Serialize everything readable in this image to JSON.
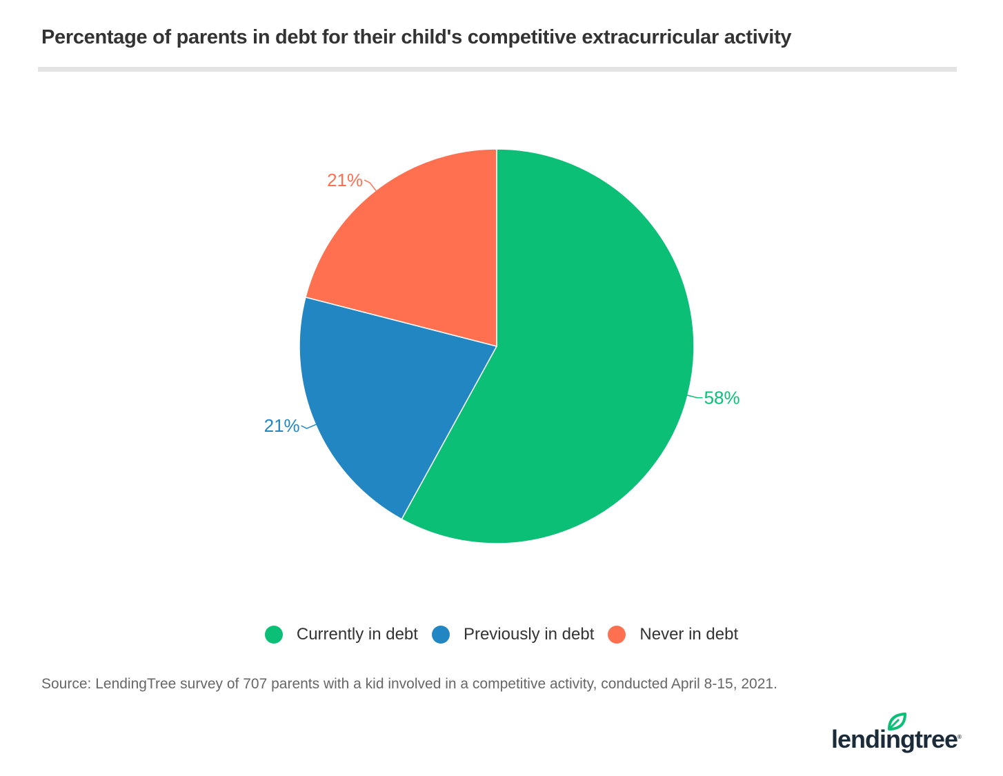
{
  "header": {
    "title": "Percentage of parents in debt for their child's competitive extracurricular activity"
  },
  "chart_data": {
    "type": "pie",
    "title": "Percentage of parents in debt for their child's competitive extracurricular activity",
    "categories": [
      "Currently in debt",
      "Previously in debt",
      "Never in debt"
    ],
    "values": [
      58,
      21,
      21
    ],
    "data_labels": [
      "58%",
      "21%",
      "21%"
    ],
    "colors": [
      "#0bbf77",
      "#2286c2",
      "#ff7050"
    ],
    "start_angle": "top",
    "direction": "clockwise",
    "legend_position": "bottom"
  },
  "legend": {
    "items": [
      {
        "label": "Currently in debt",
        "color": "#0bbf77"
      },
      {
        "label": "Previously in debt",
        "color": "#2286c2"
      },
      {
        "label": "Never in debt",
        "color": "#ff7050"
      }
    ]
  },
  "footer": {
    "source": "Source: LendingTree survey of 707 parents with a kid involved in a competitive activity, conducted April 8-15, 2021."
  },
  "logo": {
    "text": "lendingtree",
    "reg": "®",
    "leaf_color": "#0bbf77"
  }
}
